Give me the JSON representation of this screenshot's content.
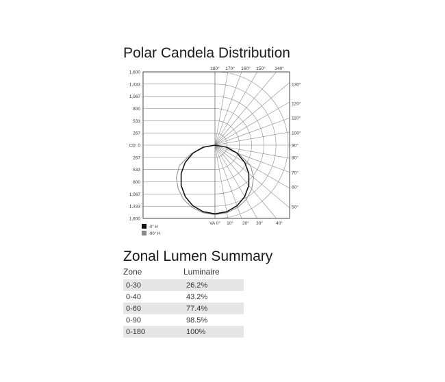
{
  "polar": {
    "title": "Polar Candela Distribution",
    "chart_data": {
      "type": "polar",
      "radial_tick_labels": [
        "1,600",
        "1,333",
        "1,067",
        "800",
        "533",
        "267",
        "CD: 0",
        "267",
        "533",
        "800",
        "1,067",
        "1,333",
        "1,600"
      ],
      "rmax": 1600,
      "top_angle_labels": [
        "180°",
        "170°",
        "160°",
        "150°",
        "140°"
      ],
      "right_angle_labels": [
        "130°",
        "120°",
        "110°",
        "100°",
        "90°",
        "80°",
        "70°",
        "60°",
        "50°"
      ],
      "bottom_angle_labels": [
        "VA 0°",
        "10°",
        "20°",
        "30°",
        "40°"
      ],
      "angles": [
        0,
        10,
        20,
        30,
        40,
        50,
        60,
        70,
        80,
        90
      ],
      "series": [
        {
          "name": "-0° H",
          "color": "#111111",
          "values": [
            1500,
            1477,
            1410,
            1299,
            1149,
            964,
            750,
            513,
            260,
            0
          ]
        },
        {
          "name": "-90° H",
          "color": "#888888",
          "values": [
            1520,
            1500,
            1450,
            1370,
            1250,
            1100,
            900,
            560,
            220,
            0
          ]
        }
      ]
    }
  },
  "zonal": {
    "title": "Zonal Lumen Summary",
    "headers": [
      "Zone",
      "Luminaire"
    ],
    "rows": [
      [
        "0-30",
        "26.2%"
      ],
      [
        "0-40",
        "43.2%"
      ],
      [
        "0-60",
        "77.4%"
      ],
      [
        "0-90",
        "98.5%"
      ],
      [
        "0-180",
        "100%"
      ]
    ]
  }
}
